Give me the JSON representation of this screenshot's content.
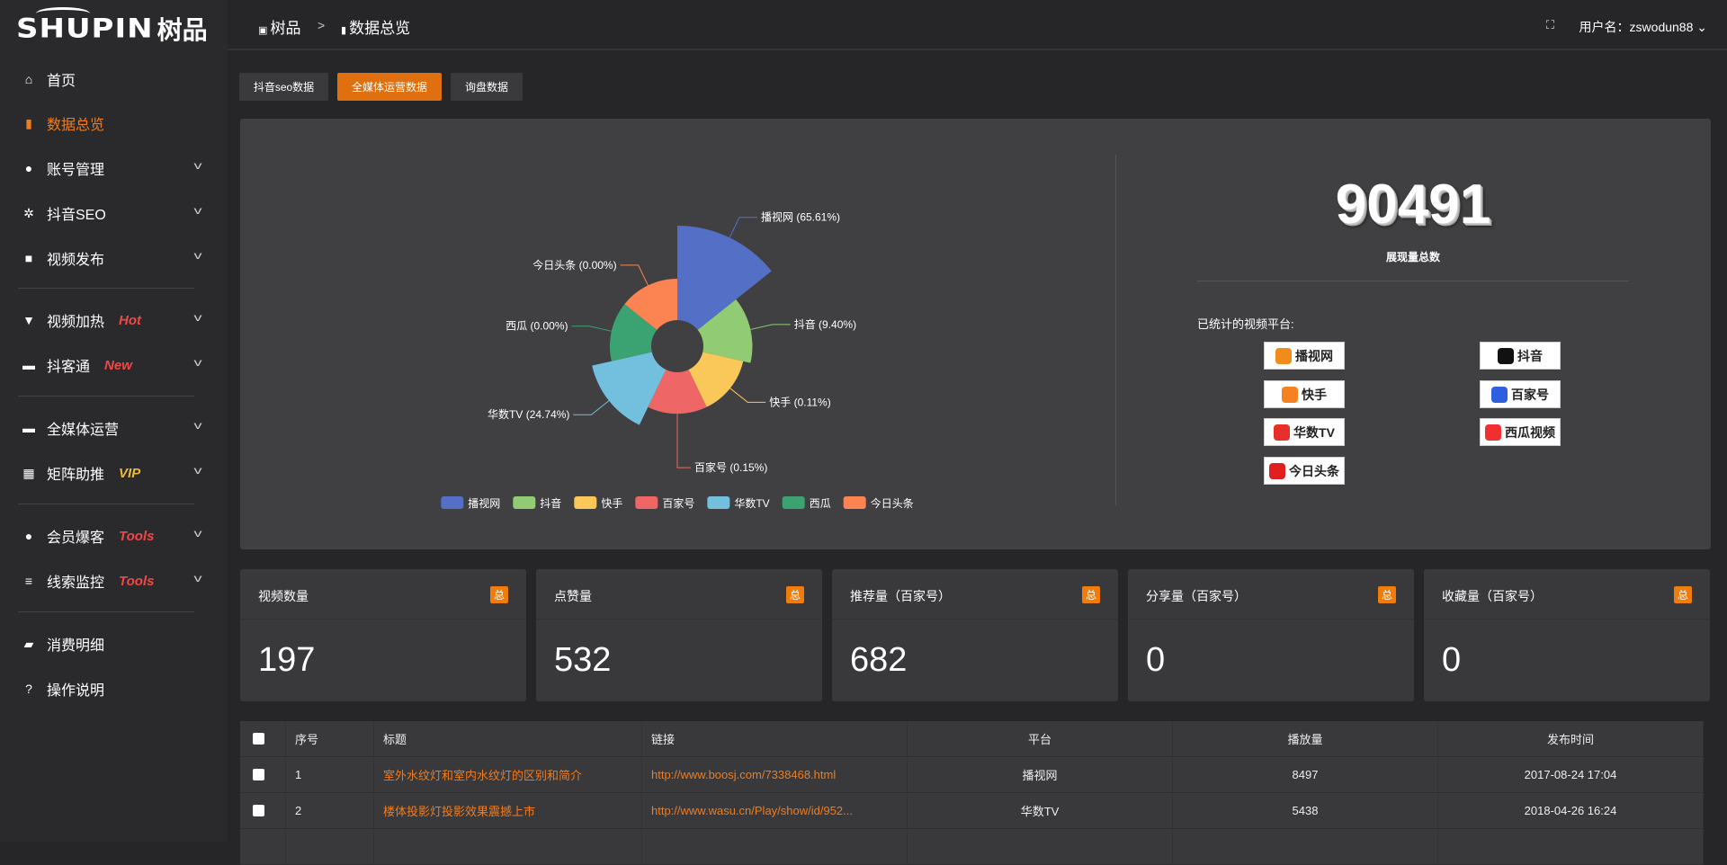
{
  "logo": {
    "en": "SHUPIN",
    "zh": "树品"
  },
  "breadcrumb": [
    {
      "label": "树品",
      "icon": "chart-image-icon"
    },
    {
      "label": "数据总览",
      "icon": "bar-chart-icon"
    }
  ],
  "breadcrumb_sep": ">",
  "user": {
    "label": "用户名：zswodun88",
    "chevron": "⌄"
  },
  "sidebar": {
    "items": [
      {
        "label": "首页",
        "icon": "home-icon",
        "glyph": "⌂"
      },
      {
        "label": "数据总览",
        "icon": "bar-chart-icon",
        "glyph": "▮",
        "active": true
      },
      {
        "label": "账号管理",
        "icon": "user-icon",
        "glyph": "●",
        "chev": true
      },
      {
        "label": "抖音SEO",
        "icon": "gear-icon",
        "glyph": "✲",
        "chev": true
      },
      {
        "label": "视频发布",
        "icon": "camera-icon",
        "glyph": "■",
        "chev": true
      },
      {
        "label": "视频加热",
        "icon": "display-icon",
        "glyph": "▼",
        "tag": "Hot",
        "tagColor": "#f04848",
        "chev": true
      },
      {
        "label": "抖客通",
        "icon": "chat-icon",
        "glyph": "▬",
        "tag": "New",
        "tagColor": "#f04848",
        "chev": true
      },
      {
        "label": "全媒体运营",
        "icon": "monitor-icon",
        "glyph": "▬",
        "chev": true
      },
      {
        "label": "矩阵助推",
        "icon": "grid-icon",
        "glyph": "▦",
        "tag": "VIP",
        "tagColor": "#f0b838",
        "chev": true
      },
      {
        "label": "会员爆客",
        "icon": "user-icon",
        "glyph": "●",
        "tag": "Tools",
        "tagColor": "#f04848",
        "chev": true
      },
      {
        "label": "线索监控",
        "icon": "sliders-icon",
        "glyph": "≡",
        "tag": "Tools",
        "tagColor": "#f04848",
        "chev": true
      },
      {
        "label": "消费明细",
        "icon": "wallet-icon",
        "glyph": "▰"
      },
      {
        "label": "操作说明",
        "icon": "help-icon",
        "glyph": "?"
      }
    ]
  },
  "tabs": [
    {
      "label": "抖音seo数据"
    },
    {
      "label": "全媒体运营数据",
      "active": true
    },
    {
      "label": "询盘数据"
    }
  ],
  "chart_data": {
    "type": "pie",
    "rose": true,
    "categories": [
      "播视网",
      "抖音",
      "快手",
      "百家号",
      "华数TV",
      "西瓜",
      "今日头条"
    ],
    "labels": [
      "播视网 (65.61%)",
      "抖音 (9.40%)",
      "快手 (0.11%)",
      "百家号 (0.15%)",
      "华数TV (24.74%)",
      "西瓜 (0.00%)",
      "今日头条 (0.00%)"
    ],
    "values": [
      65.61,
      9.4,
      0.11,
      0.15,
      24.74,
      0.0,
      0.0
    ],
    "colors": [
      "#5470c6",
      "#91cc75",
      "#fac858",
      "#ee6666",
      "#73c0de",
      "#3ba272",
      "#fc8452"
    ],
    "legend": "bottom"
  },
  "summary": {
    "total": "90491",
    "total_label": "展现量总数",
    "platforms_label": "已统计的视频平台:",
    "platforms": [
      {
        "name": "播视网",
        "color": "#f08c1c"
      },
      {
        "name": "抖音",
        "color": "#111"
      },
      {
        "name": "快手",
        "color": "#f6821f"
      },
      {
        "name": "百家号",
        "color": "#2e5fe0"
      },
      {
        "name": "华数TV",
        "color": "#e8302a"
      },
      {
        "name": "西瓜视频",
        "color": "#f03030"
      },
      {
        "name": "今日头条",
        "color": "#e02020"
      }
    ]
  },
  "cards": [
    {
      "title": "视频数量",
      "badge": "总",
      "value": "197"
    },
    {
      "title": "点赞量",
      "badge": "总",
      "value": "532"
    },
    {
      "title": "推荐量（百家号）",
      "badge": "总",
      "value": "682"
    },
    {
      "title": "分享量（百家号）",
      "badge": "总",
      "value": "0"
    },
    {
      "title": "收藏量（百家号）",
      "badge": "总",
      "value": "0"
    }
  ],
  "table": {
    "headers": [
      "序号",
      "标题",
      "链接",
      "平台",
      "播放量",
      "发布时间"
    ],
    "rows": [
      [
        "1",
        "室外水纹灯和室内水纹灯的区别和简介",
        "http://www.boosj.com/7338468.html",
        "播视网",
        "8497",
        "2017-08-24 17:04"
      ],
      [
        "2",
        "楼体投影灯投影效果震撼上市",
        "http://www.wasu.cn/Play/show/id/952...",
        "华数TV",
        "5438",
        "2018-04-26 16:24"
      ],
      [
        "",
        "",
        "",
        "",
        "",
        ""
      ]
    ]
  }
}
